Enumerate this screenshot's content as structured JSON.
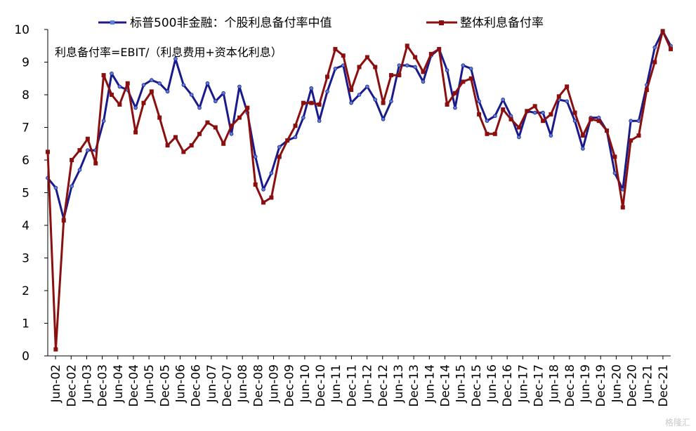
{
  "chart_data": {
    "type": "line",
    "note": "利息备付率=EBIT/（利息费用+资本化利息）",
    "ylim": [
      0,
      10
    ],
    "y_ticks": [
      "0",
      "1",
      "2",
      "3",
      "4",
      "5",
      "6",
      "7",
      "8",
      "9",
      "10"
    ],
    "x_ticks": [
      "Jun-02",
      "Dec-02",
      "Jun-03",
      "Dec-03",
      "Jun-04",
      "Dec-04",
      "Jun-05",
      "Dec-05",
      "Jun-06",
      "Dec-06",
      "Jun-07",
      "Dec-07",
      "Jun-08",
      "Dec-08",
      "Jun-09",
      "Dec-09",
      "Jun-10",
      "Dec-10",
      "Jun-11",
      "Dec-11",
      "Jun-12",
      "Dec-12",
      "Jun-13",
      "Dec-13",
      "Jun-14",
      "Dec-14",
      "Jun-15",
      "Dec-15",
      "Jun-16",
      "Dec-16",
      "Jun-17",
      "Dec-17",
      "Jun-18",
      "Dec-18",
      "Jun-19",
      "Dec-19",
      "Jun-20",
      "Dec-20",
      "Jun-21",
      "Dec-21"
    ],
    "grid": false,
    "legend_position": "top",
    "series": [
      {
        "name": "标普500非金融：个股利息备付率中值",
        "color": "#1a1a8c",
        "values": [
          5.45,
          5.15,
          4.2,
          5.2,
          5.7,
          6.3,
          6.3,
          7.2,
          8.65,
          8.25,
          8.15,
          7.6,
          8.3,
          8.45,
          8.35,
          8.1,
          9.1,
          8.3,
          8.0,
          7.6,
          8.35,
          7.8,
          8.05,
          6.8,
          8.25,
          7.45,
          6.1,
          5.1,
          5.6,
          6.4,
          6.6,
          6.7,
          7.3,
          8.2,
          7.2,
          8.1,
          8.8,
          8.9,
          7.75,
          8.0,
          8.25,
          7.85,
          7.25,
          7.8,
          8.9,
          8.9,
          8.85,
          8.4,
          9.2,
          9.4,
          8.75,
          7.6,
          8.9,
          8.8,
          7.8,
          7.2,
          7.35,
          7.85,
          7.35,
          6.7,
          7.5,
          7.45,
          7.45,
          6.75,
          7.85,
          7.8,
          7.2,
          6.35,
          7.3,
          7.3,
          6.9,
          5.6,
          5.1,
          7.2,
          7.2,
          8.3,
          9.45,
          9.95,
          9.5
        ]
      },
      {
        "name": "整体利息备付率",
        "color": "#8b0f0f",
        "values": [
          6.25,
          0.2,
          4.15,
          6.0,
          6.3,
          6.65,
          5.9,
          8.6,
          8.0,
          7.7,
          8.35,
          6.85,
          7.75,
          8.1,
          7.3,
          6.45,
          6.7,
          6.25,
          6.45,
          6.8,
          7.15,
          7.0,
          6.5,
          7.05,
          7.3,
          7.6,
          5.25,
          4.7,
          4.85,
          6.1,
          6.6,
          7.05,
          7.75,
          7.75,
          7.7,
          8.55,
          9.4,
          9.2,
          8.15,
          8.85,
          9.15,
          8.85,
          7.75,
          8.6,
          8.6,
          9.5,
          9.15,
          8.7,
          9.25,
          9.4,
          7.7,
          8.05,
          8.4,
          8.5,
          7.4,
          6.8,
          6.8,
          7.55,
          7.25,
          7.0,
          7.5,
          7.65,
          7.2,
          7.4,
          7.95,
          8.25,
          7.45,
          6.75,
          7.25,
          7.2,
          6.9,
          6.1,
          4.55,
          6.6,
          6.75,
          8.15,
          9.0,
          9.95,
          9.4
        ]
      }
    ]
  },
  "watermark": "格隆汇"
}
